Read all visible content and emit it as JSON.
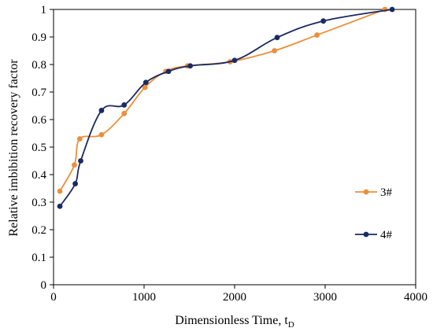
{
  "chart_data": {
    "type": "line",
    "smooth": true,
    "title": "",
    "xlabel": "Dimensionless Time, ",
    "xlabel_subscript_base": "t",
    "xlabel_subscript": "D",
    "ylabel": "Relative imbibition recovery factor",
    "xlim": [
      0,
      4000
    ],
    "ylim": [
      0,
      1
    ],
    "xticks": [
      0,
      1000,
      2000,
      3000,
      4000
    ],
    "yticks": [
      0,
      0.1,
      0.2,
      0.3,
      0.4,
      0.5,
      0.6,
      0.7,
      0.8,
      0.9,
      1
    ],
    "ytick_labels": [
      "0",
      "0.1",
      "0.2",
      "0.3",
      "0.4",
      "0.5",
      "0.6",
      "0.7",
      "0.8",
      "0.9",
      "1"
    ],
    "grid": false,
    "legend_position": "right",
    "series": [
      {
        "name": "3#",
        "color": "#ED8E3B",
        "x": [
          70,
          230,
          290,
          530,
          780,
          1010,
          1240,
          1480,
          1950,
          2440,
          2910,
          3660
        ],
        "y": [
          0.34,
          0.435,
          0.53,
          0.545,
          0.622,
          0.717,
          0.775,
          0.795,
          0.81,
          0.85,
          0.907,
          1.0
        ]
      },
      {
        "name": "4#",
        "color": "#1A2A63",
        "x": [
          70,
          240,
          300,
          530,
          780,
          1020,
          1270,
          1510,
          2000,
          2470,
          2980,
          3740
        ],
        "y": [
          0.285,
          0.367,
          0.45,
          0.633,
          0.653,
          0.735,
          0.775,
          0.795,
          0.815,
          0.898,
          0.958,
          1.0
        ]
      }
    ]
  }
}
